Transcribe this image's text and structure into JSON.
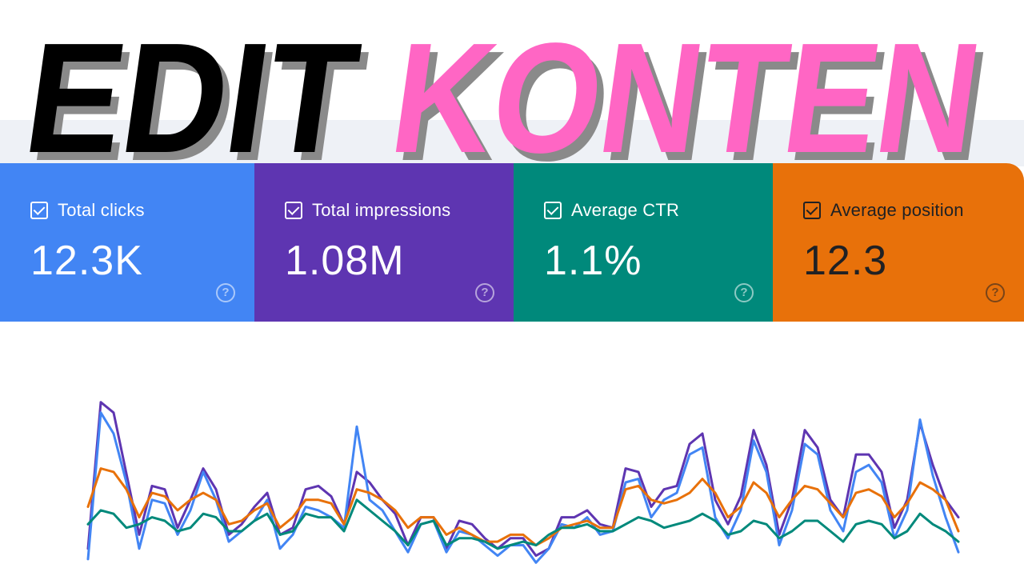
{
  "headline": {
    "word1": "EDIT",
    "word2": "KONTEN",
    "word1_color": "#000000",
    "word2_color": "#ff66c4",
    "shadow_color": "#8a8a8a"
  },
  "cards": [
    {
      "label": "Total clicks",
      "value": "12.3K",
      "help": "?",
      "bg": "#4285f4",
      "fg": "#ffffff"
    },
    {
      "label": "Total impressions",
      "value": "1.08M",
      "help": "?",
      "bg": "#5e35b1",
      "fg": "#ffffff"
    },
    {
      "label": "Average CTR",
      "value": "1.1%",
      "help": "?",
      "bg": "#00897b",
      "fg": "#ffffff"
    },
    {
      "label": "Average position",
      "value": "12.3",
      "help": "?",
      "bg": "#e8710a",
      "fg": "#202124"
    }
  ],
  "chart_data": {
    "type": "line",
    "grid": false,
    "series": [
      {
        "color": "#5e35b1",
        "values": [
          12,
          96,
          90,
          55,
          20,
          48,
          46,
          24,
          40,
          58,
          46,
          20,
          26,
          36,
          44,
          20,
          24,
          46,
          48,
          42,
          26,
          56,
          50,
          40,
          32,
          14,
          30,
          30,
          12,
          28,
          26,
          18,
          12,
          18,
          18,
          8,
          12,
          30,
          30,
          34,
          26,
          24,
          58,
          56,
          36,
          46,
          48,
          72,
          78,
          40,
          26,
          42,
          80,
          60,
          20,
          40,
          80,
          70,
          40,
          30,
          66,
          66,
          56,
          24,
          40,
          84,
          60,
          40,
          30
        ]
      },
      {
        "color": "#4285f4",
        "values": [
          6,
          90,
          78,
          50,
          12,
          40,
          38,
          20,
          34,
          56,
          40,
          16,
          22,
          28,
          40,
          12,
          20,
          36,
          34,
          30,
          24,
          82,
          40,
          34,
          22,
          10,
          26,
          28,
          10,
          22,
          20,
          14,
          8,
          14,
          14,
          4,
          12,
          26,
          24,
          30,
          20,
          22,
          50,
          52,
          30,
          40,
          44,
          66,
          70,
          30,
          18,
          34,
          74,
          56,
          14,
          34,
          72,
          66,
          34,
          22,
          56,
          60,
          50,
          18,
          34,
          86,
          54,
          30,
          10
        ]
      },
      {
        "color": "#e8710a",
        "values": [
          36,
          58,
          56,
          46,
          30,
          44,
          42,
          34,
          40,
          44,
          40,
          26,
          28,
          34,
          38,
          24,
          30,
          40,
          40,
          38,
          26,
          46,
          44,
          40,
          34,
          24,
          30,
          30,
          20,
          24,
          20,
          16,
          16,
          20,
          20,
          14,
          18,
          24,
          26,
          28,
          24,
          24,
          46,
          48,
          40,
          38,
          40,
          44,
          52,
          44,
          30,
          36,
          50,
          44,
          30,
          40,
          48,
          46,
          38,
          30,
          44,
          46,
          42,
          30,
          38,
          50,
          46,
          40,
          22
        ]
      },
      {
        "color": "#00897b",
        "values": [
          26,
          34,
          32,
          24,
          26,
          30,
          28,
          22,
          24,
          32,
          30,
          22,
          22,
          28,
          32,
          20,
          22,
          32,
          30,
          30,
          22,
          40,
          34,
          28,
          22,
          14,
          26,
          28,
          14,
          18,
          18,
          16,
          12,
          14,
          16,
          14,
          20,
          24,
          24,
          26,
          22,
          22,
          26,
          30,
          28,
          24,
          26,
          28,
          32,
          28,
          20,
          22,
          28,
          26,
          18,
          22,
          28,
          28,
          22,
          16,
          26,
          28,
          26,
          18,
          22,
          32,
          26,
          22,
          16
        ]
      }
    ],
    "ylim": [
      0,
      100
    ]
  }
}
